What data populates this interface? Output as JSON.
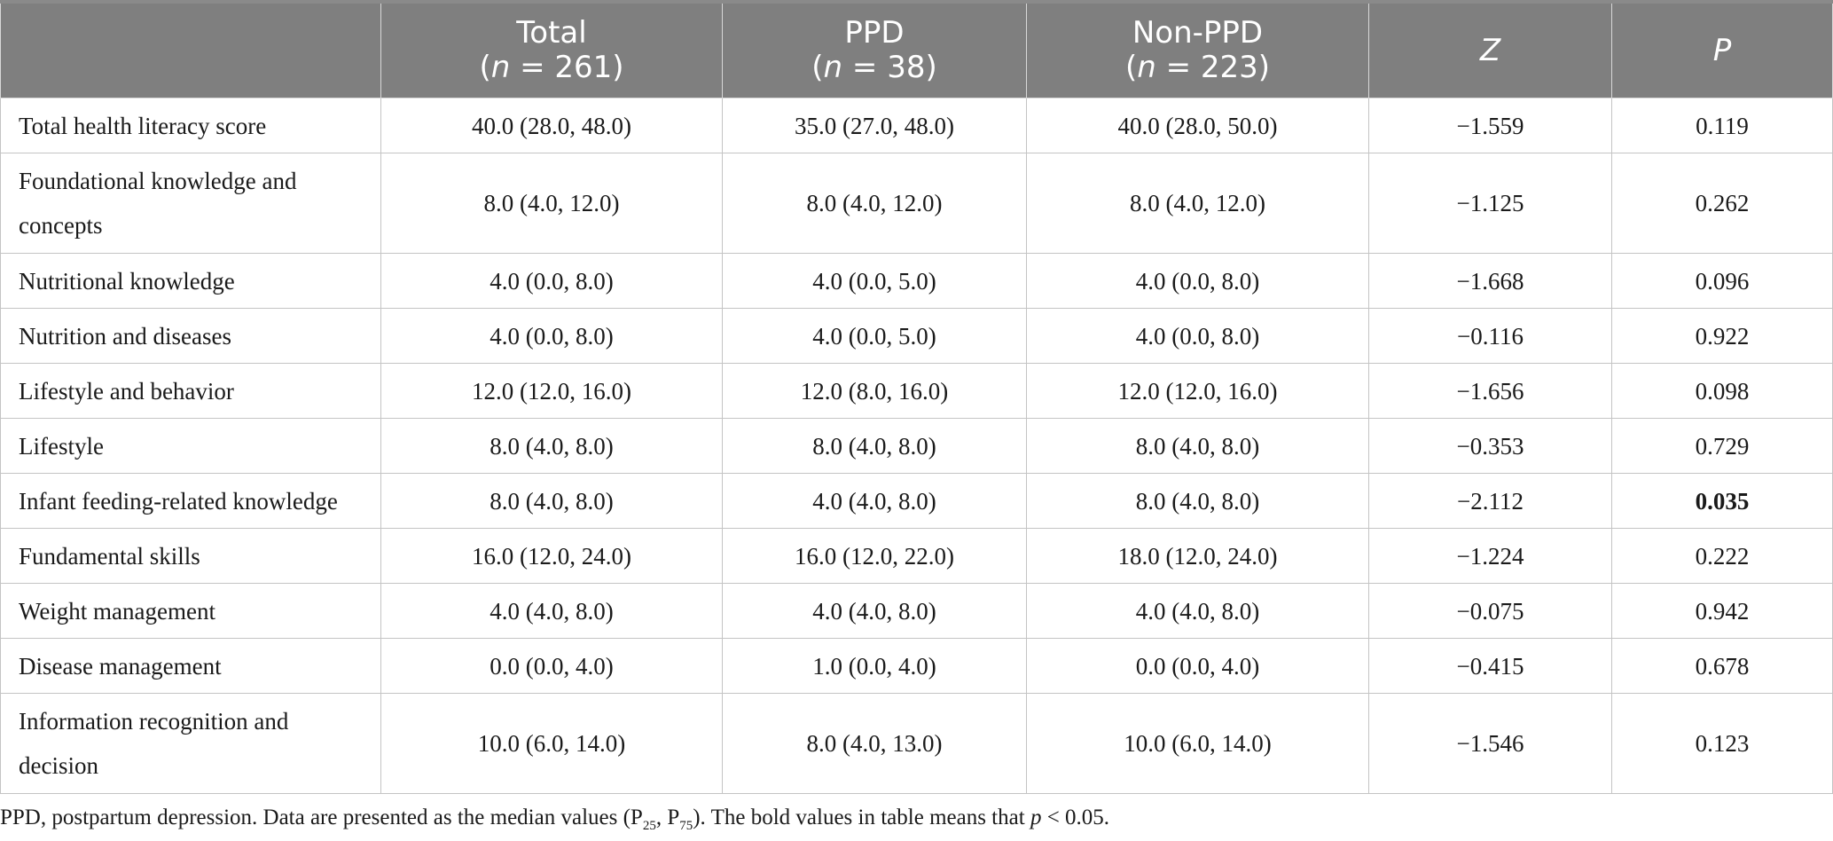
{
  "header": {
    "col0": "",
    "total_l1": "Total",
    "total_n": "261",
    "ppd_l1": "PPD",
    "ppd_n": "38",
    "nonppd_l1": "Non-PPD",
    "nonppd_n": "223",
    "n_symbol": "n",
    "n_eq": " = ",
    "open_paren": "(",
    "close_paren": ")",
    "z": "Z",
    "p": "P"
  },
  "rows": [
    {
      "label": "Total health literacy score",
      "total": "40.0 (28.0, 48.0)",
      "ppd": "35.0 (27.0, 48.0)",
      "nonppd": "40.0 (28.0, 50.0)",
      "z": "−1.559",
      "p": "0.119"
    },
    {
      "label": "Foundational knowledge and concepts",
      "total": "8.0 (4.0, 12.0)",
      "ppd": "8.0 (4.0, 12.0)",
      "nonppd": "8.0 (4.0, 12.0)",
      "z": "−1.125",
      "p": "0.262"
    },
    {
      "label": "Nutritional knowledge",
      "total": "4.0 (0.0, 8.0)",
      "ppd": "4.0 (0.0, 5.0)",
      "nonppd": "4.0 (0.0, 8.0)",
      "z": "−1.668",
      "p": "0.096"
    },
    {
      "label": "Nutrition and diseases",
      "total": "4.0 (0.0, 8.0)",
      "ppd": "4.0 (0.0, 5.0)",
      "nonppd": "4.0 (0.0, 8.0)",
      "z": "−0.116",
      "p": "0.922"
    },
    {
      "label": "Lifestyle and behavior",
      "total": "12.0 (12.0, 16.0)",
      "ppd": "12.0 (8.0, 16.0)",
      "nonppd": "12.0 (12.0, 16.0)",
      "z": "−1.656",
      "p": "0.098"
    },
    {
      "label": "Lifestyle",
      "total": "8.0 (4.0, 8.0)",
      "ppd": "8.0 (4.0, 8.0)",
      "nonppd": "8.0 (4.0, 8.0)",
      "z": "−0.353",
      "p": "0.729"
    },
    {
      "label": "Infant feeding-related knowledge",
      "total": "8.0 (4.0, 8.0)",
      "ppd": "4.0 (4.0, 8.0)",
      "nonppd": "8.0 (4.0, 8.0)",
      "z": "−2.112",
      "p": "0.035"
    },
    {
      "label": "Fundamental skills",
      "total": "16.0 (12.0, 24.0)",
      "ppd": "16.0 (12.0, 22.0)",
      "nonppd": "18.0 (12.0, 24.0)",
      "z": "−1.224",
      "p": "0.222"
    },
    {
      "label": "Weight management",
      "total": "4.0 (4.0, 8.0)",
      "ppd": "4.0 (4.0, 8.0)",
      "nonppd": "4.0 (4.0, 8.0)",
      "z": "−0.075",
      "p": "0.942"
    },
    {
      "label": "Disease management",
      "total": "0.0 (0.0, 4.0)",
      "ppd": "1.0 (0.0, 4.0)",
      "nonppd": "0.0 (0.0, 4.0)",
      "z": "−0.415",
      "p": "0.678"
    },
    {
      "label": "Information recognition and decision",
      "total": "10.0 (6.0, 14.0)",
      "ppd": "8.0 (4.0, 13.0)",
      "nonppd": "10.0 (6.0, 14.0)",
      "z": "−1.546",
      "p": "0.123"
    }
  ],
  "footnote": {
    "part1": "PPD, postpartum depression. Data are presented as the median values (P",
    "sub1": "25",
    "part2": ", P",
    "sub2": "75",
    "part3": "). The bold values in table means that ",
    "p_symbol": "p",
    "part4": " < 0.05."
  }
}
